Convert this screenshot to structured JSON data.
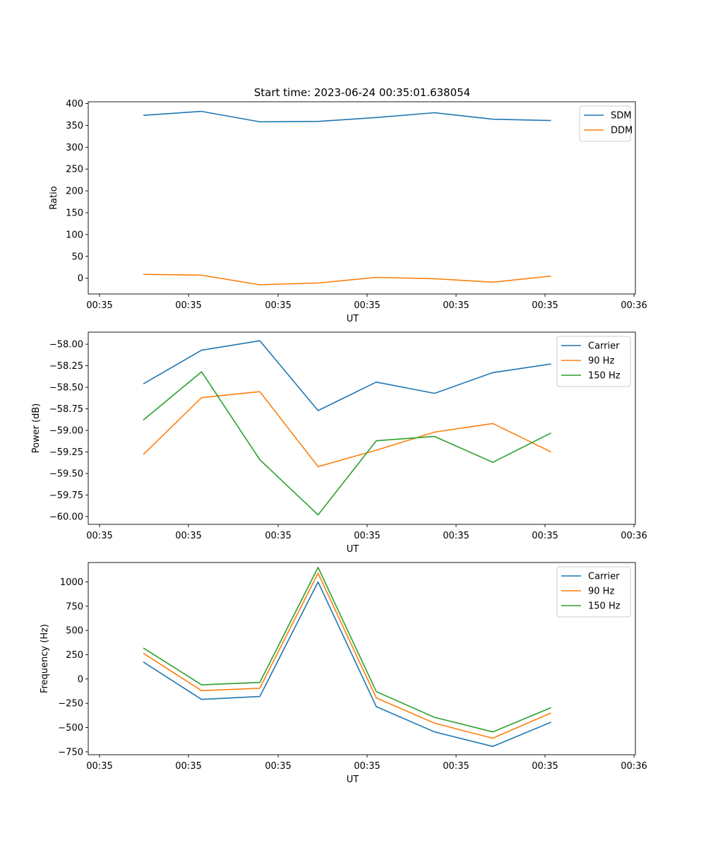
{
  "figure": {
    "title": "Start time: 2023-06-24 00:35:01.638054"
  },
  "chart_data": [
    {
      "type": "line",
      "title": "Start time: 2023-06-24 00:35:01.638054",
      "xlabel": "UT",
      "ylabel": "Ratio",
      "x_tick_labels": [
        "00:35",
        "00:35",
        "00:35",
        "00:35",
        "00:35",
        "00:35",
        "00:36"
      ],
      "ylim": [
        -36,
        404
      ],
      "y_ticks": [
        0,
        50,
        100,
        150,
        200,
        250,
        300,
        350,
        400
      ],
      "legend": "top-right",
      "grid": false,
      "series": [
        {
          "name": "SDM",
          "color": "#1f77b4",
          "values": [
            373,
            382,
            358,
            359,
            368,
            379,
            364,
            361
          ]
        },
        {
          "name": "DDM",
          "color": "#ff7f0e",
          "values": [
            9,
            7,
            -15,
            -11,
            2,
            -1,
            -9,
            5
          ]
        }
      ]
    },
    {
      "type": "line",
      "title": "",
      "xlabel": "UT",
      "ylabel": "Power (dB)",
      "x_tick_labels": [
        "00:35",
        "00:35",
        "00:35",
        "00:35",
        "00:35",
        "00:35",
        "00:36"
      ],
      "ylim": [
        -60.09,
        -57.86
      ],
      "y_ticks": [
        -60.0,
        -59.75,
        -59.5,
        -59.25,
        -59.0,
        -58.75,
        -58.5,
        -58.25,
        -58.0
      ],
      "y_tick_labels": [
        "−60.00",
        "−59.75",
        "−59.50",
        "−59.25",
        "−59.00",
        "−58.75",
        "−58.50",
        "−58.25",
        "−58.00"
      ],
      "legend": "top-right",
      "grid": false,
      "series": [
        {
          "name": "Carrier",
          "color": "#1f77b4",
          "values": [
            -58.46,
            -58.07,
            -57.96,
            -58.77,
            -58.44,
            -58.57,
            -58.33,
            -58.23
          ]
        },
        {
          "name": "90 Hz",
          "color": "#ff7f0e",
          "values": [
            -59.28,
            -58.62,
            -58.55,
            -59.42,
            -59.23,
            -59.02,
            -58.92,
            -59.25
          ]
        },
        {
          "name": "150 Hz",
          "color": "#2ca02c",
          "values": [
            -58.88,
            -58.32,
            -59.34,
            -59.98,
            -59.12,
            -59.07,
            -59.37,
            -59.03
          ]
        }
      ]
    },
    {
      "type": "line",
      "title": "",
      "xlabel": "UT",
      "ylabel": "Frequency (Hz)",
      "x_tick_labels": [
        "00:35",
        "00:35",
        "00:35",
        "00:35",
        "00:35",
        "00:35",
        "00:36"
      ],
      "ylim": [
        -780,
        1200
      ],
      "y_ticks": [
        -750,
        -500,
        -250,
        0,
        250,
        500,
        750,
        1000
      ],
      "y_tick_labels": [
        "−750",
        "−500",
        "−250",
        "0",
        "250",
        "500",
        "750",
        "1000"
      ],
      "legend": "top-right",
      "grid": false,
      "series": [
        {
          "name": "Carrier",
          "color": "#1f77b4",
          "values": [
            175,
            -210,
            -180,
            1000,
            -285,
            -545,
            -695,
            -445
          ]
        },
        {
          "name": "90 Hz",
          "color": "#ff7f0e",
          "values": [
            265,
            -120,
            -95,
            1090,
            -195,
            -455,
            -610,
            -350
          ]
        },
        {
          "name": "150 Hz",
          "color": "#2ca02c",
          "values": [
            320,
            -60,
            -35,
            1150,
            -130,
            -395,
            -545,
            -295
          ]
        }
      ]
    }
  ]
}
